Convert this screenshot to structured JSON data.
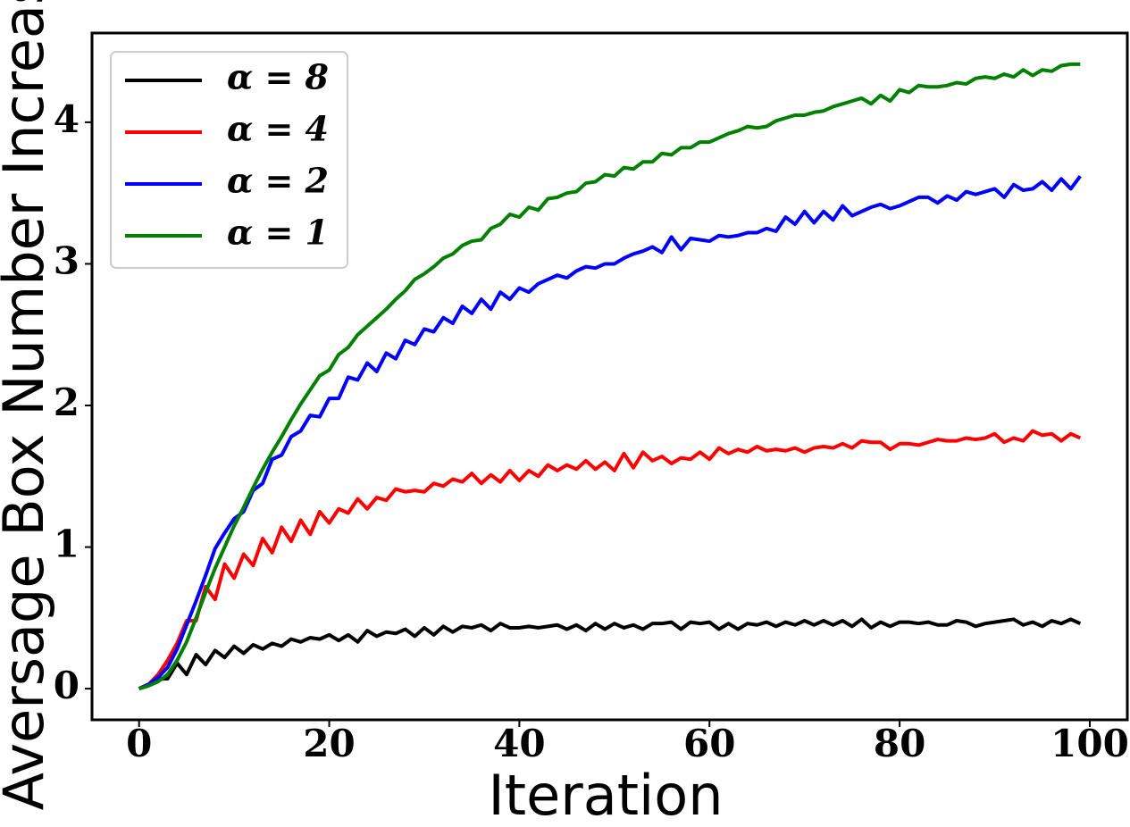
{
  "chart_data": {
    "type": "line",
    "xlabel": "Iteration",
    "ylabel": "Aversage Box Number Increase",
    "x": [
      0,
      1,
      2,
      3,
      4,
      5,
      6,
      7,
      8,
      9,
      10,
      11,
      12,
      13,
      14,
      15,
      16,
      17,
      18,
      19,
      20,
      21,
      22,
      23,
      24,
      25,
      26,
      27,
      28,
      29,
      30,
      31,
      32,
      33,
      34,
      35,
      36,
      37,
      38,
      39,
      40,
      41,
      42,
      43,
      44,
      45,
      46,
      47,
      48,
      49,
      50,
      51,
      52,
      53,
      54,
      55,
      56,
      57,
      58,
      59,
      60,
      61,
      62,
      63,
      64,
      65,
      66,
      67,
      68,
      69,
      70,
      71,
      72,
      73,
      74,
      75,
      76,
      77,
      78,
      79,
      80,
      81,
      82,
      83,
      84,
      85,
      86,
      87,
      88,
      89,
      90,
      91,
      92,
      93,
      94,
      95,
      96,
      97,
      98,
      99
    ],
    "series": [
      {
        "name": "α = 8",
        "color": "#000000",
        "values": [
          0,
          0.03,
          0.07,
          0.07,
          0.18,
          0.1,
          0.24,
          0.17,
          0.27,
          0.22,
          0.3,
          0.25,
          0.31,
          0.28,
          0.32,
          0.3,
          0.35,
          0.33,
          0.36,
          0.35,
          0.38,
          0.34,
          0.38,
          0.33,
          0.41,
          0.37,
          0.4,
          0.39,
          0.42,
          0.37,
          0.43,
          0.38,
          0.44,
          0.4,
          0.44,
          0.43,
          0.45,
          0.41,
          0.46,
          0.43,
          0.43,
          0.44,
          0.43,
          0.44,
          0.45,
          0.42,
          0.45,
          0.41,
          0.46,
          0.42,
          0.46,
          0.43,
          0.45,
          0.42,
          0.46,
          0.46,
          0.47,
          0.42,
          0.47,
          0.46,
          0.47,
          0.42,
          0.46,
          0.42,
          0.46,
          0.45,
          0.47,
          0.44,
          0.47,
          0.45,
          0.48,
          0.45,
          0.48,
          0.45,
          0.48,
          0.44,
          0.49,
          0.43,
          0.47,
          0.44,
          0.47,
          0.47,
          0.46,
          0.47,
          0.45,
          0.45,
          0.48,
          0.47,
          0.44,
          0.46,
          0.47,
          0.48,
          0.49,
          0.45,
          0.47,
          0.44,
          0.48,
          0.46,
          0.49,
          0.46
        ]
      },
      {
        "name": "α = 4",
        "color": "#ff0000",
        "values": [
          0,
          0.03,
          0.1,
          0.2,
          0.32,
          0.48,
          0.48,
          0.72,
          0.63,
          0.88,
          0.78,
          0.95,
          0.87,
          1.06,
          0.96,
          1.14,
          1.04,
          1.19,
          1.09,
          1.25,
          1.17,
          1.27,
          1.24,
          1.34,
          1.27,
          1.35,
          1.33,
          1.41,
          1.39,
          1.4,
          1.39,
          1.45,
          1.43,
          1.48,
          1.46,
          1.52,
          1.45,
          1.51,
          1.46,
          1.54,
          1.47,
          1.54,
          1.5,
          1.58,
          1.54,
          1.58,
          1.55,
          1.61,
          1.55,
          1.6,
          1.54,
          1.66,
          1.56,
          1.67,
          1.61,
          1.64,
          1.59,
          1.63,
          1.62,
          1.67,
          1.62,
          1.7,
          1.66,
          1.69,
          1.67,
          1.71,
          1.68,
          1.69,
          1.68,
          1.7,
          1.67,
          1.7,
          1.71,
          1.7,
          1.73,
          1.7,
          1.75,
          1.74,
          1.74,
          1.69,
          1.73,
          1.73,
          1.72,
          1.74,
          1.76,
          1.75,
          1.75,
          1.77,
          1.76,
          1.77,
          1.8,
          1.74,
          1.77,
          1.75,
          1.82,
          1.79,
          1.8,
          1.75,
          1.8,
          1.77
        ]
      },
      {
        "name": "α = 2",
        "color": "#0000ff",
        "values": [
          0,
          0.03,
          0.08,
          0.15,
          0.28,
          0.45,
          0.62,
          0.8,
          0.99,
          1.1,
          1.2,
          1.25,
          1.4,
          1.45,
          1.62,
          1.65,
          1.78,
          1.82,
          1.93,
          1.92,
          2.05,
          2.05,
          2.2,
          2.18,
          2.3,
          2.24,
          2.37,
          2.33,
          2.46,
          2.43,
          2.54,
          2.52,
          2.62,
          2.58,
          2.7,
          2.65,
          2.75,
          2.68,
          2.8,
          2.75,
          2.83,
          2.8,
          2.86,
          2.89,
          2.92,
          2.9,
          2.95,
          2.98,
          2.97,
          3.0,
          3.0,
          3.04,
          3.07,
          3.09,
          3.12,
          3.08,
          3.19,
          3.1,
          3.18,
          3.17,
          3.16,
          3.2,
          3.19,
          3.2,
          3.22,
          3.22,
          3.25,
          3.23,
          3.33,
          3.28,
          3.37,
          3.29,
          3.37,
          3.31,
          3.41,
          3.34,
          3.37,
          3.4,
          3.42,
          3.39,
          3.41,
          3.44,
          3.47,
          3.47,
          3.43,
          3.48,
          3.45,
          3.51,
          3.49,
          3.51,
          3.53,
          3.47,
          3.56,
          3.52,
          3.53,
          3.58,
          3.52,
          3.6,
          3.53,
          3.62
        ]
      },
      {
        "name": "α = 1",
        "color": "#008000",
        "values": [
          0,
          0.02,
          0.05,
          0.1,
          0.2,
          0.33,
          0.5,
          0.68,
          0.85,
          1.0,
          1.15,
          1.28,
          1.42,
          1.55,
          1.67,
          1.78,
          1.9,
          2.01,
          2.11,
          2.21,
          2.25,
          2.36,
          2.41,
          2.5,
          2.56,
          2.62,
          2.68,
          2.75,
          2.81,
          2.89,
          2.93,
          2.98,
          3.04,
          3.07,
          3.13,
          3.16,
          3.17,
          3.25,
          3.28,
          3.35,
          3.33,
          3.4,
          3.38,
          3.46,
          3.47,
          3.5,
          3.51,
          3.57,
          3.58,
          3.63,
          3.62,
          3.68,
          3.67,
          3.72,
          3.72,
          3.78,
          3.77,
          3.82,
          3.82,
          3.86,
          3.86,
          3.89,
          3.92,
          3.94,
          3.97,
          3.96,
          3.97,
          4.01,
          4.03,
          4.05,
          4.05,
          4.07,
          4.08,
          4.11,
          4.13,
          4.15,
          4.17,
          4.13,
          4.19,
          4.15,
          4.23,
          4.21,
          4.26,
          4.25,
          4.25,
          4.26,
          4.28,
          4.27,
          4.31,
          4.32,
          4.31,
          4.34,
          4.32,
          4.37,
          4.33,
          4.37,
          4.36,
          4.4,
          4.41,
          4.41
        ]
      }
    ],
    "xlim": [
      -4.95,
      103.95
    ],
    "xticks": [
      0,
      20,
      40,
      60,
      80,
      100
    ],
    "ylim": [
      -0.22,
      4.63
    ],
    "yticks": [
      0,
      1,
      2,
      3,
      4
    ],
    "grid": false,
    "legend": "upper left"
  }
}
